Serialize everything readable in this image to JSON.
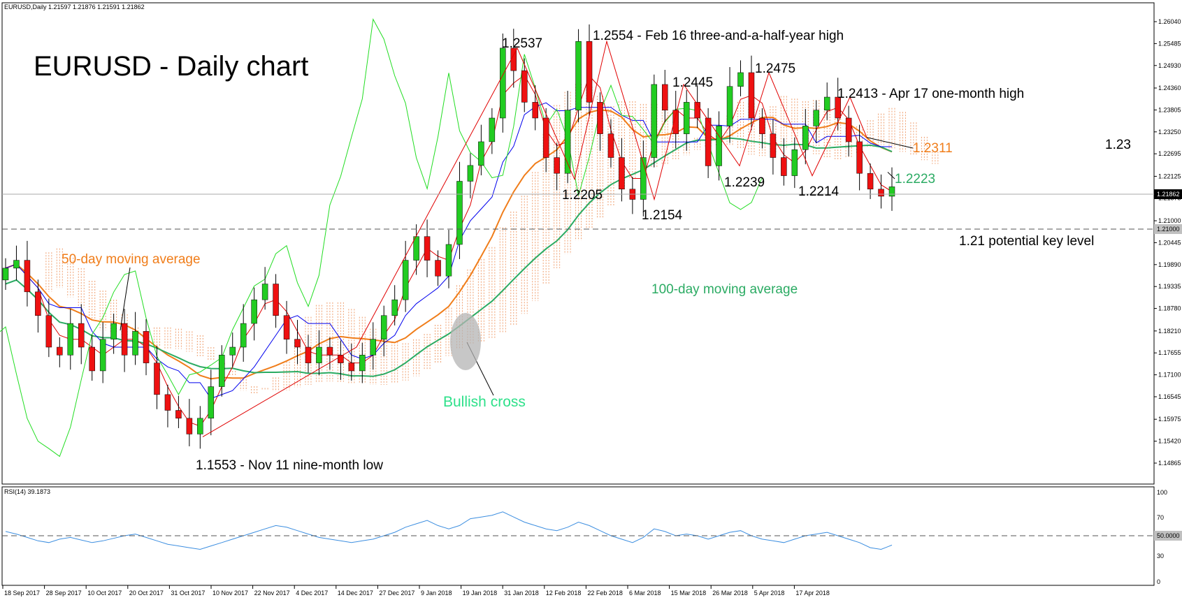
{
  "chart_data": {
    "type": "candlestick",
    "symbol_header": "EURUSD,Daily  1.21597 1.21876 1.21591 1.21862",
    "title": "EURUSD - Daily chart",
    "price_axis": {
      "ylim": [
        1.145,
        1.263
      ],
      "ticks": [
        "1.26040",
        "1.25485",
        "1.24930",
        "1.24360",
        "1.23805",
        "1.23250",
        "1.22695",
        "1.22125",
        "1.21575",
        "1.21000",
        "1.20445",
        "1.19890",
        "1.19335",
        "1.18780",
        "1.18210",
        "1.17655",
        "1.17100",
        "1.16545",
        "1.15975",
        "1.15420",
        "1.14865"
      ],
      "current_price_label": "1.21862",
      "key_level_label": "1.21000"
    },
    "x_axis": {
      "ticks": [
        "18 Sep 2017",
        "28 Sep 2017",
        "10 Oct 2017",
        "20 Oct 2017",
        "31 Oct 2017",
        "10 Nov 2017",
        "22 Nov 2017",
        "4 Dec 2017",
        "14 Dec 2017",
        "27 Dec 2017",
        "9 Jan 2018",
        "19 Jan 2018",
        "31 Jan 2018",
        "12 Feb 2018",
        "22 Feb 2018",
        "6 Mar 2018",
        "15 Mar 2018",
        "26 Mar 2018",
        "5 Apr 2018",
        "17 Apr 2018"
      ]
    },
    "close_path": [
      1.198,
      1.2,
      1.192,
      1.186,
      1.178,
      1.176,
      1.184,
      1.178,
      1.172,
      1.18,
      1.184,
      1.176,
      1.182,
      1.174,
      1.166,
      1.162,
      1.16,
      1.156,
      1.16,
      1.168,
      1.176,
      1.178,
      1.184,
      1.19,
      1.194,
      1.186,
      1.18,
      1.178,
      1.174,
      1.178,
      1.176,
      1.174,
      1.172,
      1.176,
      1.18,
      1.186,
      1.19,
      1.2,
      1.206,
      1.2,
      1.196,
      1.204,
      1.22,
      1.224,
      1.23,
      1.236,
      1.2537,
      1.248,
      1.24,
      1.236,
      1.226,
      1.222,
      1.238,
      1.2554,
      1.24,
      1.232,
      1.226,
      1.218,
      1.2154,
      1.226,
      1.2445,
      1.238,
      1.232,
      1.24,
      1.236,
      1.2239,
      1.234,
      1.244,
      1.2475,
      1.236,
      1.232,
      1.226,
      1.2214,
      1.228,
      1.234,
      1.238,
      1.2413,
      1.236,
      1.23,
      1.222,
      1.218,
      1.2162,
      1.2186
    ],
    "annotations": [
      "1.2537",
      "1.2554 - Feb 16 three-and-a-half-year high",
      "1.2445",
      "1.2475",
      "1.2413 - Apr 17 one-month high",
      "1.2205",
      "1.2154",
      "1.2239",
      "1.2214",
      "1.2223",
      "1.2311",
      "1.23",
      "1.21 potential key level",
      "50-day moving average",
      "100-day moving average",
      "Bullish cross",
      "1.1553 - Nov 11 nine-month low"
    ],
    "rsi": {
      "header": "RSI(14) 39.1873",
      "ylim": [
        0,
        100
      ],
      "ticks": [
        "100",
        "70",
        "50.0000",
        "30",
        "0"
      ],
      "values": [
        55,
        52,
        48,
        44,
        42,
        46,
        48,
        45,
        42,
        44,
        47,
        50,
        52,
        48,
        44,
        40,
        38,
        36,
        34,
        38,
        42,
        46,
        50,
        54,
        58,
        62,
        60,
        56,
        52,
        48,
        46,
        44,
        42,
        44,
        46,
        50,
        54,
        60,
        64,
        68,
        62,
        58,
        62,
        70,
        72,
        74,
        78,
        72,
        66,
        62,
        58,
        56,
        60,
        66,
        62,
        56,
        50,
        46,
        42,
        48,
        58,
        55,
        50,
        52,
        50,
        46,
        50,
        54,
        56,
        50,
        46,
        44,
        42,
        46,
        50,
        52,
        54,
        50,
        46,
        42,
        36,
        34,
        39
      ]
    },
    "colors": {
      "bull_candle": "#22cc22",
      "bear_candle": "#ee1111",
      "ma50": "#f07d1a",
      "ma100": "#2bab63",
      "tenkan": "#e00000",
      "kijun": "#0000ee",
      "chikou": "#22dd22",
      "cloud": "#f0a070",
      "rsi": "#3c8ee0"
    }
  }
}
